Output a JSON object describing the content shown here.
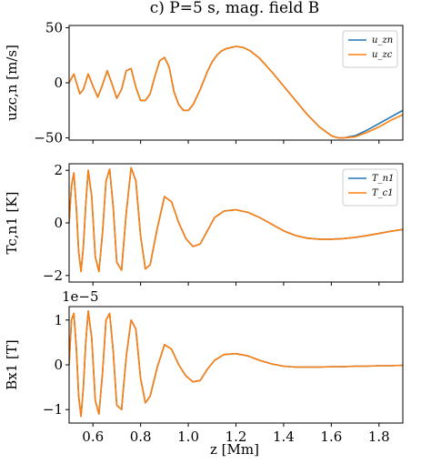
{
  "chart_data": {
    "type": "line",
    "title": "c) P=5 s, mag. field B",
    "xlabel": "z [Mm]",
    "xlim": [
      0.5,
      1.9
    ],
    "xticks": [
      0.6,
      0.8,
      1.0,
      1.2,
      1.4,
      1.6,
      1.8
    ],
    "xtick_labels": [
      "0.6",
      "0.8",
      "1.0",
      "1.2",
      "1.4",
      "1.6",
      "1.8"
    ],
    "grid": false,
    "colors": {
      "series_a": "#1f77b4",
      "series_b": "#ff7f0e"
    },
    "panels": [
      {
        "ylabel": "u_zc,n [m/s]",
        "ylabel_display": "uzc,n [m/s]",
        "ylim": [
          -52,
          52
        ],
        "yticks": [
          -50,
          0,
          50
        ],
        "ytick_labels": [
          "−50",
          "0",
          "50"
        ],
        "offset_text": "",
        "legend_placement": "top-right",
        "series": [
          {
            "name": "u_zn",
            "x": [
              0.5,
              0.52,
              0.545,
              0.56,
              0.58,
              0.6,
              0.62,
              0.64,
              0.66,
              0.68,
              0.7,
              0.72,
              0.74,
              0.76,
              0.78,
              0.8,
              0.82,
              0.84,
              0.86,
              0.88,
              0.9,
              0.92,
              0.94,
              0.96,
              0.98,
              1.0,
              1.02,
              1.05,
              1.08,
              1.1,
              1.12,
              1.14,
              1.16,
              1.18,
              1.2,
              1.23,
              1.26,
              1.3,
              1.35,
              1.4,
              1.45,
              1.5,
              1.55,
              1.6,
              1.63,
              1.65,
              1.7,
              1.75,
              1.8,
              1.85,
              1.9
            ],
            "y": [
              0,
              8,
              -10,
              -6,
              8,
              -3,
              -13,
              -2,
              11,
              -1,
              -14,
              -6,
              11,
              13,
              -4,
              -16,
              -16,
              -10,
              6,
              20,
              23,
              14,
              -8,
              -20,
              -25,
              -25,
              -20,
              -6,
              10,
              19,
              25,
              29,
              31,
              32,
              33,
              32,
              29,
              22,
              10,
              -3,
              -16,
              -29,
              -40,
              -48,
              -50,
              -50,
              -48,
              -43,
              -37,
              -31,
              -25
            ]
          },
          {
            "name": "u_zc",
            "x": [
              0.5,
              0.52,
              0.545,
              0.56,
              0.58,
              0.6,
              0.62,
              0.64,
              0.66,
              0.68,
              0.7,
              0.72,
              0.74,
              0.76,
              0.78,
              0.8,
              0.82,
              0.84,
              0.86,
              0.88,
              0.9,
              0.92,
              0.94,
              0.96,
              0.98,
              1.0,
              1.02,
              1.05,
              1.08,
              1.1,
              1.12,
              1.14,
              1.16,
              1.18,
              1.2,
              1.23,
              1.26,
              1.3,
              1.35,
              1.4,
              1.45,
              1.5,
              1.55,
              1.6,
              1.63,
              1.65,
              1.7,
              1.75,
              1.8,
              1.85,
              1.9
            ],
            "y": [
              0,
              8,
              -10,
              -6,
              8,
              -3,
              -13,
              -2,
              11,
              -1,
              -14,
              -6,
              11,
              13,
              -4,
              -16,
              -16,
              -10,
              6,
              20,
              23,
              14,
              -8,
              -20,
              -25,
              -25,
              -20,
              -6,
              10,
              19,
              25,
              29,
              31,
              32,
              33,
              32,
              29,
              22,
              10,
              -3,
              -16,
              -29,
              -40,
              -48,
              -50,
              -50,
              -49,
              -45,
              -40,
              -34,
              -29
            ]
          }
        ]
      },
      {
        "ylabel": "T_c,n1 [K]",
        "ylabel_display": "Tc,n1 [K]",
        "ylim": [
          -2.25,
          2.25
        ],
        "yticks": [
          -2,
          0,
          2
        ],
        "ytick_labels": [
          "−2",
          "0",
          "2"
        ],
        "offset_text": "",
        "legend_placement": "top-right",
        "series": [
          {
            "name": "T_n1",
            "x": [
              0.5,
              0.51,
              0.52,
              0.53,
              0.54,
              0.55,
              0.56,
              0.57,
              0.58,
              0.595,
              0.61,
              0.625,
              0.64,
              0.655,
              0.67,
              0.685,
              0.7,
              0.72,
              0.74,
              0.76,
              0.78,
              0.8,
              0.82,
              0.84,
              0.87,
              0.9,
              0.93,
              0.96,
              0.99,
              1.02,
              1.05,
              1.08,
              1.11,
              1.15,
              1.2,
              1.25,
              1.3,
              1.35,
              1.4,
              1.45,
              1.5,
              1.55,
              1.6,
              1.65,
              1.7,
              1.75,
              1.8,
              1.85,
              1.9
            ],
            "y": [
              0,
              1.4,
              1.9,
              0.6,
              -1.1,
              -1.85,
              -0.9,
              0.7,
              2.0,
              1.0,
              -1.3,
              -1.85,
              -0.4,
              1.6,
              2.05,
              0.6,
              -1.5,
              -1.8,
              0.4,
              2.1,
              1.6,
              -0.5,
              -1.75,
              -1.6,
              -0.2,
              1.0,
              0.8,
              0.0,
              -0.6,
              -0.9,
              -0.8,
              -0.3,
              0.2,
              0.45,
              0.5,
              0.4,
              0.2,
              -0.05,
              -0.3,
              -0.48,
              -0.58,
              -0.62,
              -0.62,
              -0.6,
              -0.55,
              -0.48,
              -0.4,
              -0.32,
              -0.25
            ]
          },
          {
            "name": "T_c1",
            "x": [
              0.5,
              0.51,
              0.52,
              0.53,
              0.54,
              0.55,
              0.56,
              0.57,
              0.58,
              0.595,
              0.61,
              0.625,
              0.64,
              0.655,
              0.67,
              0.685,
              0.7,
              0.72,
              0.74,
              0.76,
              0.78,
              0.8,
              0.82,
              0.84,
              0.87,
              0.9,
              0.93,
              0.96,
              0.99,
              1.02,
              1.05,
              1.08,
              1.11,
              1.15,
              1.2,
              1.25,
              1.3,
              1.35,
              1.4,
              1.45,
              1.5,
              1.55,
              1.6,
              1.65,
              1.7,
              1.75,
              1.8,
              1.85,
              1.9
            ],
            "y": [
              0,
              1.4,
              1.9,
              0.6,
              -1.1,
              -1.85,
              -0.9,
              0.7,
              2.0,
              1.0,
              -1.3,
              -1.85,
              -0.4,
              1.6,
              2.05,
              0.6,
              -1.5,
              -1.8,
              0.4,
              2.1,
              1.6,
              -0.5,
              -1.75,
              -1.6,
              -0.2,
              1.0,
              0.8,
              0.0,
              -0.6,
              -0.9,
              -0.8,
              -0.3,
              0.2,
              0.45,
              0.5,
              0.4,
              0.2,
              -0.05,
              -0.3,
              -0.48,
              -0.58,
              -0.62,
              -0.62,
              -0.6,
              -0.55,
              -0.48,
              -0.4,
              -0.32,
              -0.25
            ]
          }
        ]
      },
      {
        "ylabel": "B_x1 [T]",
        "ylabel_display": "Bx1 [T]",
        "ylim": [
          -1.3e-05,
          1.3e-05
        ],
        "yticks": [
          -1,
          0,
          1
        ],
        "ytick_labels": [
          "−1",
          "0",
          "1"
        ],
        "offset_text": "1e−5",
        "legend_placement": "",
        "series": [
          {
            "name": "",
            "x": [
              0.5,
              0.51,
              0.52,
              0.53,
              0.54,
              0.55,
              0.56,
              0.57,
              0.58,
              0.595,
              0.61,
              0.625,
              0.64,
              0.655,
              0.67,
              0.685,
              0.7,
              0.72,
              0.74,
              0.76,
              0.78,
              0.8,
              0.82,
              0.84,
              0.87,
              0.9,
              0.93,
              0.96,
              0.99,
              1.02,
              1.05,
              1.08,
              1.11,
              1.15,
              1.2,
              1.25,
              1.3,
              1.35,
              1.4,
              1.45,
              1.5,
              1.55,
              1.6,
              1.65,
              1.7,
              1.75,
              1.8,
              1.85,
              1.9
            ],
            "y": [
              0,
              1e-05,
              1.15e-05,
              4e-06,
              -7e-06,
              -1.15e-05,
              -5e-06,
              5e-06,
              1.2e-05,
              6e-06,
              -8e-06,
              -1.1e-05,
              -2e-06,
              1e-05,
              1.15e-05,
              3e-06,
              -9e-06,
              -1e-05,
              2e-06,
              1e-05,
              8e-06,
              -3e-06,
              -8.5e-06,
              -7e-06,
              -5e-07,
              4.5e-06,
              3.5e-06,
              0,
              -2.5e-06,
              -3.8e-06,
              -3.5e-06,
              -1e-06,
              1e-06,
              2.3e-06,
              2.5e-06,
              2e-06,
              1e-06,
              2e-07,
              -3e-07,
              -5e-07,
              -5e-07,
              -5e-07,
              -4e-07,
              -4e-07,
              -3e-07,
              -3e-07,
              -2e-07,
              -2e-07,
              -1e-07
            ]
          },
          {
            "name": "",
            "x": [
              0.5,
              0.51,
              0.52,
              0.53,
              0.54,
              0.55,
              0.56,
              0.57,
              0.58,
              0.595,
              0.61,
              0.625,
              0.64,
              0.655,
              0.67,
              0.685,
              0.7,
              0.72,
              0.74,
              0.76,
              0.78,
              0.8,
              0.82,
              0.84,
              0.87,
              0.9,
              0.93,
              0.96,
              0.99,
              1.02,
              1.05,
              1.08,
              1.11,
              1.15,
              1.2,
              1.25,
              1.3,
              1.35,
              1.4,
              1.45,
              1.5,
              1.55,
              1.6,
              1.65,
              1.7,
              1.75,
              1.8,
              1.85,
              1.9
            ],
            "y": [
              0,
              1e-05,
              1.15e-05,
              4e-06,
              -7e-06,
              -1.15e-05,
              -5e-06,
              5e-06,
              1.2e-05,
              6e-06,
              -8e-06,
              -1.1e-05,
              -2e-06,
              1e-05,
              1.15e-05,
              3e-06,
              -9e-06,
              -1e-05,
              2e-06,
              1e-05,
              8e-06,
              -3e-06,
              -8.5e-06,
              -7e-06,
              -5e-07,
              4.5e-06,
              3.5e-06,
              0,
              -2.5e-06,
              -3.8e-06,
              -3.5e-06,
              -1e-06,
              1e-06,
              2.3e-06,
              2.5e-06,
              2e-06,
              1e-06,
              2e-07,
              -3e-07,
              -5e-07,
              -5e-07,
              -5e-07,
              -4e-07,
              -4e-07,
              -3e-07,
              -3e-07,
              -2e-07,
              -2e-07,
              -1e-07
            ]
          }
        ]
      }
    ]
  }
}
